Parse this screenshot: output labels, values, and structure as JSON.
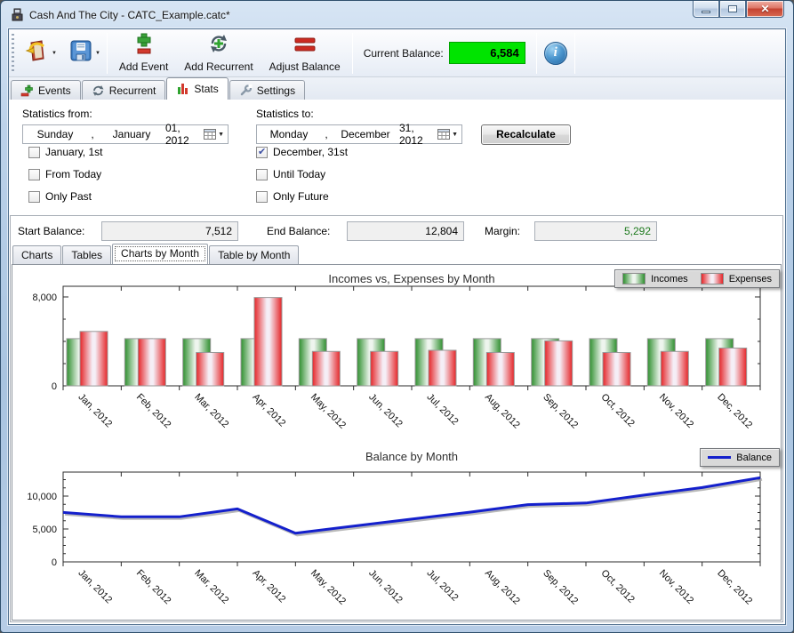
{
  "window": {
    "title": "Cash And The City - CATC_Example.catc*",
    "controls": {
      "minimize": "minimize-icon",
      "maximize": "maximize-icon",
      "close": "close-icon"
    }
  },
  "toolbar": {
    "open_icon": "open-file-icon",
    "save_icon": "save-icon",
    "add_event_label": "Add Event",
    "add_recurrent_label": "Add Recurrent",
    "adjust_balance_label": "Adjust Balance",
    "current_balance_label": "Current Balance:",
    "current_balance_value": "6,584",
    "current_balance_bg": "#00e400",
    "info_icon": "info-icon"
  },
  "tabs": [
    {
      "label": "Events",
      "icon": "plus-minus-icon",
      "active": false
    },
    {
      "label": "Recurrent",
      "icon": "recurrent-arrows-icon",
      "active": false
    },
    {
      "label": "Stats",
      "icon": "bar-chart-icon",
      "active": true
    },
    {
      "label": "Settings",
      "icon": "wrench-icon",
      "active": false
    }
  ],
  "stats_form": {
    "from_label": "Statistics from:",
    "from_value": [
      "Sunday",
      ",",
      "January",
      "01, 2012"
    ],
    "to_label": "Statistics to:",
    "to_value": [
      "Monday",
      ",",
      "December",
      "31, 2012"
    ],
    "recalculate_label": "Recalculate",
    "checkboxes_left": [
      {
        "label": "January, 1st",
        "checked": false
      },
      {
        "label": "From Today",
        "checked": false
      },
      {
        "label": "Only Past",
        "checked": false
      }
    ],
    "checkboxes_right": [
      {
        "label": "December, 31st",
        "checked": true
      },
      {
        "label": "Until Today",
        "checked": false
      },
      {
        "label": "Only Future",
        "checked": false
      }
    ]
  },
  "summary": {
    "start_label": "Start Balance:",
    "start_value": "7,512",
    "end_label": "End Balance:",
    "end_value": "12,804",
    "margin_label": "Margin:",
    "margin_value": "5,292",
    "margin_color": "#1e7a1e"
  },
  "subtabs": [
    {
      "label": "Charts",
      "active": false
    },
    {
      "label": "Tables",
      "active": false
    },
    {
      "label": "Charts by Month",
      "active": true
    },
    {
      "label": "Table by Month",
      "active": false
    }
  ],
  "chart_data": [
    {
      "type": "bar",
      "title": "Incomes vs, Expenses by Month",
      "categories": [
        "Jan, 2012",
        "Feb, 2012",
        "Mar, 2012",
        "Apr, 2012",
        "May, 2012",
        "Jun, 2012",
        "Jul, 2012",
        "Aug, 2012",
        "Sep, 2012",
        "Oct, 2012",
        "Nov, 2012",
        "Dec, 2012"
      ],
      "series": [
        {
          "name": "Incomes",
          "color": "#2f8f2f",
          "values": [
            4250,
            4250,
            4250,
            4250,
            4250,
            4250,
            4250,
            4250,
            4250,
            4250,
            4250,
            4250
          ]
        },
        {
          "name": "Expenses",
          "color": "#e52528",
          "values": [
            4900,
            4250,
            3000,
            7950,
            3100,
            3100,
            3200,
            3000,
            4050,
            3000,
            3100,
            3400
          ]
        }
      ],
      "xlabel": "",
      "ylabel": "",
      "ylim": [
        0,
        8960
      ],
      "yticks": [
        {
          "v": 0,
          "label": "0"
        },
        {
          "v": 8000,
          "label": "8,000"
        }
      ],
      "minor_tick": 2000,
      "grid": false,
      "legend_position": "top-right",
      "x_label_rotation": 45
    },
    {
      "type": "line",
      "title": "Balance by Month",
      "categories": [
        "Jan, 2012",
        "Feb, 2012",
        "Mar, 2012",
        "Apr, 2012",
        "May, 2012",
        "Jun, 2012",
        "Jul, 2012",
        "Aug, 2012",
        "Sep, 2012",
        "Oct, 2012",
        "Nov, 2012",
        "Dec, 2012"
      ],
      "series": [
        {
          "name": "Balance",
          "color": "#1420cc",
          "values": [
            7512,
            6850,
            6850,
            8050,
            4350,
            5450,
            6500,
            7550,
            8700,
            8950,
            10150,
            11300,
            12804
          ]
        }
      ],
      "points_note": "13 points: start balance at Jan 1, then balance at each month end (ends at 12,804)",
      "xlabel": "",
      "ylabel": "",
      "ylim": [
        0,
        13650
      ],
      "yticks": [
        {
          "v": 0,
          "label": "0"
        },
        {
          "v": 5000,
          "label": "5,000"
        },
        {
          "v": 10000,
          "label": "10,000"
        }
      ],
      "minor_tick": 1250,
      "grid": false,
      "legend_position": "top-right",
      "x_label_rotation": 45
    }
  ]
}
